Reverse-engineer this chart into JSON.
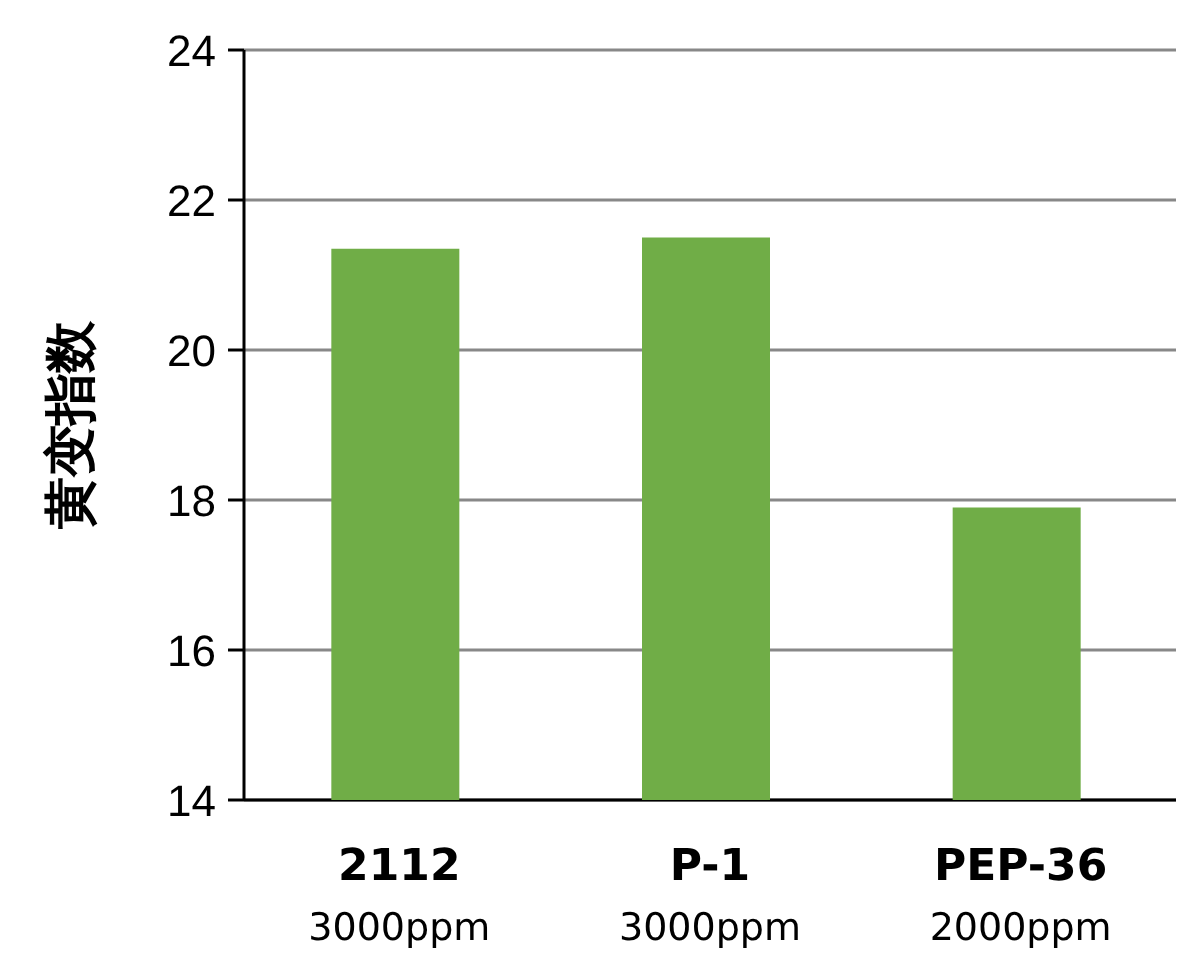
{
  "chart_data": {
    "type": "bar",
    "ylabel": "黄变指数",
    "categories": [
      "2112\n3000ppm",
      "P-1\n3000ppm",
      "PEP-36\n2000ppm"
    ],
    "values": [
      21.35,
      21.5,
      17.9
    ],
    "color": "#70ad47",
    "ylim": [
      14,
      24
    ],
    "yticks": [
      14,
      16,
      18,
      20,
      22,
      24
    ],
    "grid": "y"
  }
}
